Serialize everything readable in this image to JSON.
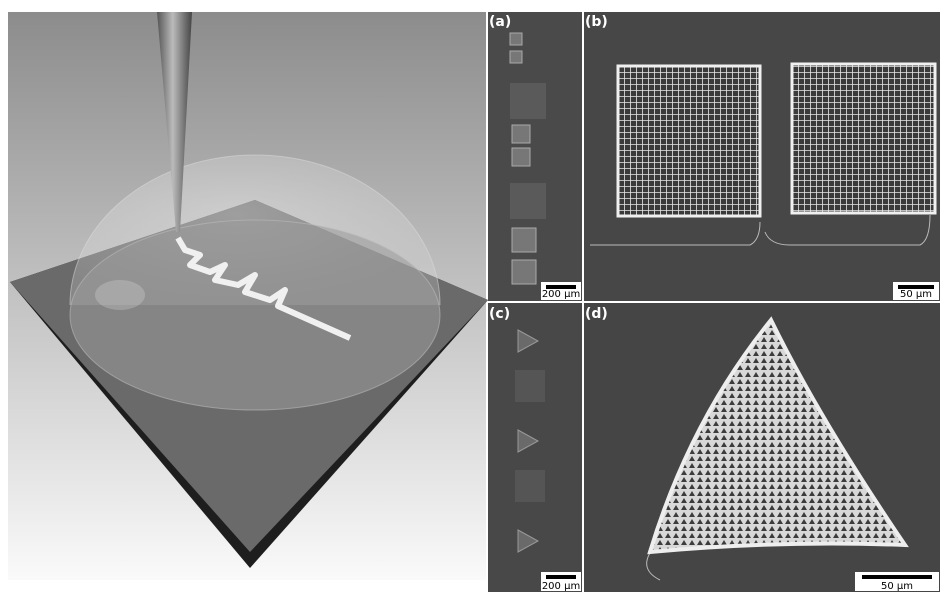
{
  "panels": [
    {
      "label": "(a)",
      "scale_bar": "200 µm"
    },
    {
      "label": "(b)",
      "scale_bar": "50 µm"
    },
    {
      "label": "(c)",
      "scale_bar": "200 µm"
    },
    {
      "label": "(d)",
      "scale_bar": "50 µm"
    }
  ]
}
